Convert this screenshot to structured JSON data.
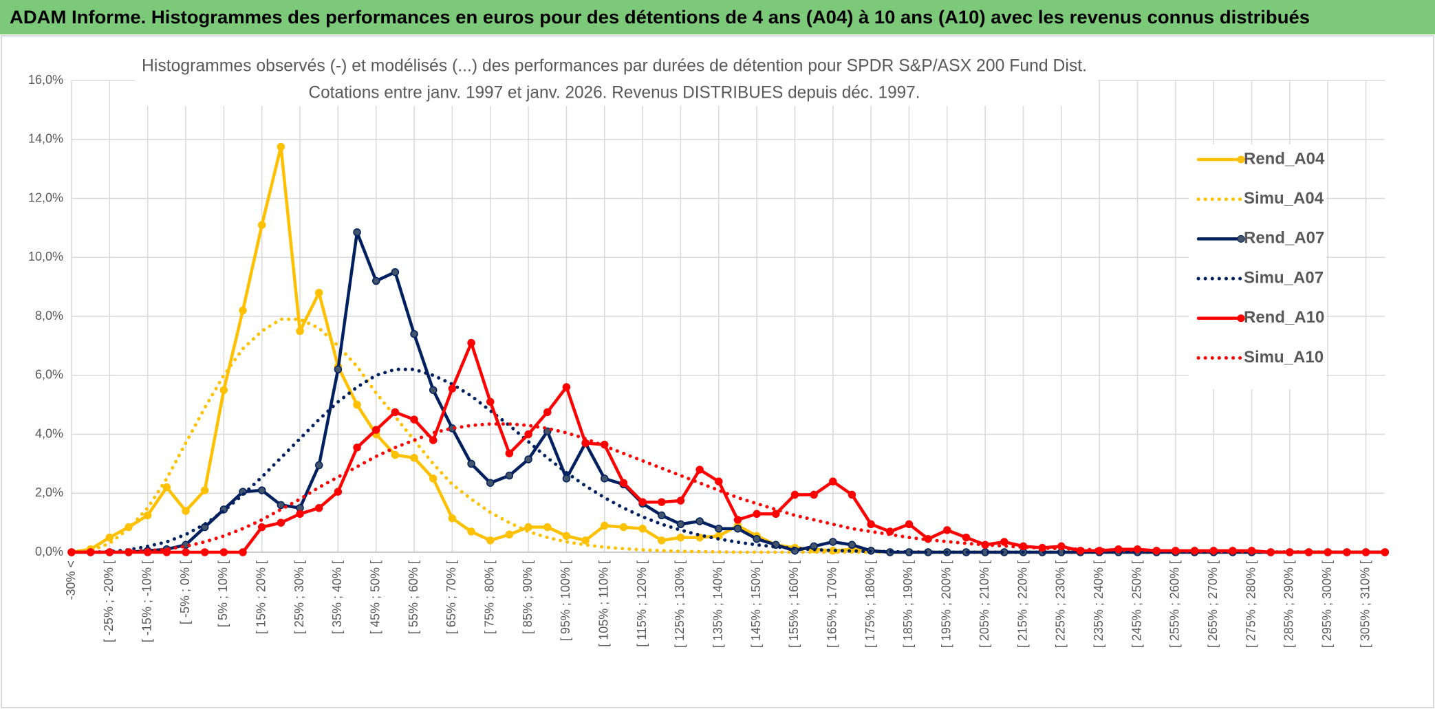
{
  "header": {
    "title": "ADAM Informe. Histogrammes des performances en euros pour des détentions de 4 ans (A04) à 10 ans (A10) avec les revenus connus distribués"
  },
  "chart_data": {
    "type": "line",
    "title": "Histogrammes observés (-) et modélisés (...) des performances par durées de détention pour SPDR S&P/ASX 200 Fund Dist.",
    "subtitle": "Cotations entre janv. 1997 et janv. 2026. Revenus DISTRIBUES depuis déc. 1997.",
    "categories": [
      "-30% <",
      null,
      "[ -25% ; -20% [",
      null,
      "[ -15% ; -10% [",
      null,
      "[ -5% ; 0% [",
      null,
      "[ 5% ; 10% [",
      null,
      "[ 15% ; 20% [",
      null,
      "[ 25% ; 30% [",
      null,
      "[ 35% ; 40% [",
      null,
      "[ 45% ; 50% [",
      null,
      "[ 55% ; 60% [",
      null,
      "[ 65% ; 70% [",
      null,
      "[ 75% ; 80% [",
      null,
      "[ 85% ; 90% [",
      null,
      "[ 95% ; 100% [",
      null,
      "[ 105% ; 110% [",
      null,
      "[ 115% ; 120% [",
      null,
      "[ 125% ; 130% [",
      null,
      "[ 135% ; 140% [",
      null,
      "[ 145% ; 150% [",
      null,
      "[ 155% ; 160% [",
      null,
      "[ 165% ; 170% [",
      null,
      "[ 175% ; 180% [",
      null,
      "[ 185% ; 190% [",
      null,
      "[ 195% ; 200% [",
      null,
      "[ 205% ; 210% [",
      null,
      "[ 215% ; 220% [",
      null,
      "[ 225% ; 230% [",
      null,
      "[ 235% ; 240% [",
      null,
      "[ 245% ; 250% [",
      null,
      "[ 255% ; 260% [",
      null,
      "[ 265% ; 270% [",
      null,
      "[ 275% ; 280% [",
      null,
      "[ 285% ; 290% [",
      null,
      "[ 295% ; 300% [",
      null,
      "[ 305% ; 310% [",
      null
    ],
    "series": [
      {
        "name": "Rend_A04",
        "color": "#FFC000",
        "style": "solid",
        "markers": true,
        "values": [
          0,
          0.1,
          0.5,
          0.85,
          1.25,
          2.2,
          1.4,
          2.1,
          5.5,
          8.2,
          11.1,
          13.75,
          7.5,
          8.8,
          6.3,
          5.0,
          4.0,
          3.3,
          3.2,
          2.5,
          1.15,
          0.7,
          0.4,
          0.6,
          0.85,
          0.85,
          0.55,
          0.4,
          0.9,
          0.85,
          0.8,
          0.4,
          0.5,
          0.5,
          0.55,
          0.9,
          0.55,
          0.25,
          0.15,
          0.1,
          0.05,
          0.1,
          0.05,
          0,
          0,
          0,
          0,
          0,
          0,
          0,
          0,
          0,
          0,
          0,
          0,
          0,
          0,
          0,
          0,
          0,
          0,
          0,
          0,
          0,
          0,
          0,
          0,
          0,
          0,
          0
        ]
      },
      {
        "name": "Simu_A04",
        "color": "#FFC000",
        "style": "dotted",
        "markers": false,
        "values": [
          0,
          0.05,
          0.3,
          0.8,
          1.5,
          2.5,
          3.7,
          4.9,
          6.0,
          6.9,
          7.5,
          7.9,
          7.9,
          7.6,
          7.0,
          6.3,
          5.4,
          4.6,
          3.8,
          3.0,
          2.3,
          1.8,
          1.35,
          1.0,
          0.7,
          0.5,
          0.35,
          0.25,
          0.17,
          0.12,
          0.08,
          0.05,
          0.03,
          0.02,
          0.01,
          0,
          0,
          0,
          0,
          0,
          0,
          0,
          0,
          0,
          0,
          0,
          0,
          0,
          0,
          0,
          0,
          0,
          0,
          0,
          0,
          0,
          0,
          0,
          0,
          0,
          0,
          0,
          0,
          0,
          0,
          0,
          0,
          0,
          0,
          0
        ]
      },
      {
        "name": "Rend_A07",
        "color": "#002060",
        "style": "solid",
        "markers": true,
        "values": [
          0,
          0,
          0,
          0,
          0.05,
          0.1,
          0.25,
          0.85,
          1.45,
          2.05,
          2.1,
          1.6,
          1.5,
          2.95,
          6.2,
          10.85,
          9.2,
          9.5,
          7.4,
          5.5,
          4.2,
          3.0,
          2.35,
          2.6,
          3.15,
          4.1,
          2.5,
          3.7,
          2.5,
          2.3,
          1.65,
          1.25,
          0.95,
          1.05,
          0.8,
          0.8,
          0.45,
          0.25,
          0.05,
          0.2,
          0.35,
          0.25,
          0.05,
          0,
          0,
          0,
          0,
          0,
          0,
          0,
          0,
          0,
          0,
          0,
          0,
          0,
          0,
          0,
          0,
          0,
          0,
          0,
          0,
          0,
          0,
          0,
          0,
          0,
          0,
          0
        ]
      },
      {
        "name": "Simu_A07",
        "color": "#002060",
        "style": "dotted",
        "markers": false,
        "values": [
          0,
          0,
          0.02,
          0.08,
          0.2,
          0.35,
          0.6,
          0.95,
          1.4,
          1.95,
          2.55,
          3.2,
          3.85,
          4.5,
          5.1,
          5.6,
          6.0,
          6.2,
          6.2,
          6.0,
          5.7,
          5.3,
          4.8,
          4.3,
          3.75,
          3.2,
          2.7,
          2.25,
          1.85,
          1.5,
          1.2,
          0.95,
          0.75,
          0.58,
          0.45,
          0.34,
          0.25,
          0.18,
          0.13,
          0.09,
          0.06,
          0.04,
          0.03,
          0.02,
          0.01,
          0,
          0,
          0,
          0,
          0,
          0,
          0,
          0,
          0,
          0,
          0,
          0,
          0,
          0,
          0,
          0,
          0,
          0,
          0,
          0,
          0,
          0,
          0,
          0,
          0
        ]
      },
      {
        "name": "Rend_A10",
        "color": "#FF0000",
        "style": "solid",
        "markers": true,
        "values": [
          0,
          0,
          0,
          0,
          0,
          0,
          0,
          0,
          0,
          0,
          0.85,
          1.0,
          1.3,
          1.5,
          2.05,
          3.55,
          4.15,
          4.75,
          4.5,
          3.8,
          5.55,
          7.1,
          5.1,
          3.35,
          4.0,
          4.75,
          5.6,
          3.7,
          3.65,
          2.35,
          1.7,
          1.7,
          1.75,
          2.8,
          2.4,
          1.1,
          1.3,
          1.3,
          1.95,
          1.95,
          2.4,
          1.95,
          0.95,
          0.7,
          0.95,
          0.45,
          0.75,
          0.5,
          0.25,
          0.35,
          0.2,
          0.15,
          0.2,
          0.05,
          0.05,
          0.1,
          0.1,
          0.05,
          0.05,
          0.05,
          0.05,
          0.05,
          0.05,
          0,
          0,
          0,
          0,
          0,
          0,
          0
        ]
      },
      {
        "name": "Simu_A10",
        "color": "#FF0000",
        "style": "dotted",
        "markers": false,
        "values": [
          0,
          0,
          0,
          0.02,
          0.05,
          0.1,
          0.2,
          0.35,
          0.55,
          0.8,
          1.1,
          1.45,
          1.8,
          2.2,
          2.55,
          2.9,
          3.25,
          3.55,
          3.8,
          4.05,
          4.2,
          4.3,
          4.35,
          4.35,
          4.3,
          4.2,
          4.05,
          3.85,
          3.6,
          3.35,
          3.1,
          2.85,
          2.6,
          2.35,
          2.1,
          1.85,
          1.65,
          1.45,
          1.25,
          1.1,
          0.95,
          0.8,
          0.7,
          0.6,
          0.5,
          0.42,
          0.36,
          0.3,
          0.25,
          0.21,
          0.17,
          0.14,
          0.12,
          0.1,
          0.08,
          0.07,
          0.06,
          0.05,
          0.04,
          0.03,
          0.03,
          0.02,
          0.02,
          0.01,
          0.01,
          0.01,
          0,
          0,
          0,
          0
        ]
      }
    ],
    "ylim": [
      0,
      16
    ],
    "yticks": [
      {
        "value": 0,
        "label": "0,0%"
      },
      {
        "value": 2,
        "label": "2,0%"
      },
      {
        "value": 4,
        "label": "4,0%"
      },
      {
        "value": 6,
        "label": "6,0%"
      },
      {
        "value": 8,
        "label": "8,0%"
      },
      {
        "value": 10,
        "label": "10,0%"
      },
      {
        "value": 12,
        "label": "12,0%"
      },
      {
        "value": 14,
        "label": "14,0%"
      },
      {
        "value": 16,
        "label": "16,0%"
      }
    ],
    "grid": true,
    "legend": "right"
  }
}
